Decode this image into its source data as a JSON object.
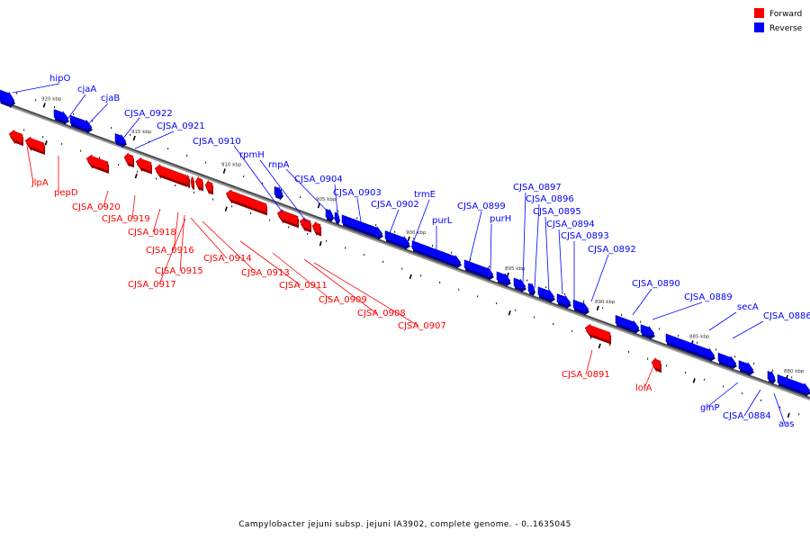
{
  "legend": {
    "forward_label": "Forward",
    "reverse_label": "Reverse",
    "forward_color": "#ff0000",
    "reverse_color": "#0000ff"
  },
  "caption": "Campylobacter jejuni subsp. jejuni IA3902, complete genome. - 0..1635045",
  "ticks": [
    "920 kbp",
    "915 kbp",
    "910 kbp",
    "905 kbp",
    "900 kbp",
    "895 kbp",
    "890 kbp",
    "885 kbp",
    "880 kbp"
  ],
  "genes": {
    "forward": [
      "jlpA",
      "pepD",
      "CJSA_0920",
      "CJSA_0919",
      "CJSA_0918",
      "CJSA_0916",
      "CJSA_0915",
      "CJSA_0917",
      "CJSA_0914",
      "CJSA_0913",
      "CJSA_0911",
      "CJSA_0909",
      "CJSA_0908",
      "CJSA_0907",
      "CJSA_0891",
      "lolA"
    ],
    "reverse": [
      "hipO",
      "cjaA",
      "cjaB",
      "CJSA_0922",
      "CJSA_0921",
      "CJSA_0910",
      "rpmH",
      "rnpA",
      "CJSA_0904",
      "CJSA_0903",
      "CJSA_0902",
      "trmE",
      "purL",
      "CJSA_0899",
      "purH",
      "CJSA_0897",
      "CJSA_0896",
      "CJSA_0895",
      "CJSA_0894",
      "CJSA_0893",
      "CJSA_0892",
      "CJSA_0890",
      "CJSA_0889",
      "secA",
      "CJSA_0886",
      "glnP",
      "CJSA_0884",
      "aas"
    ]
  }
}
